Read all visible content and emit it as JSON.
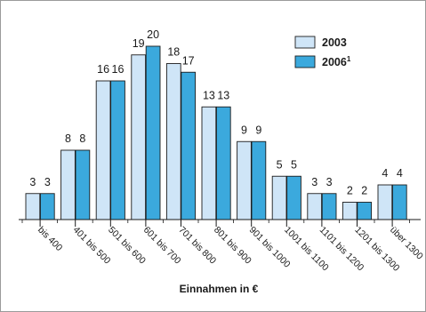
{
  "chart_data": {
    "type": "bar",
    "title": "",
    "xlabel": "Einnahmen in €",
    "ylabel": "",
    "ylim": [
      0,
      20
    ],
    "grid": false,
    "legend_position": "top-right",
    "categories": [
      "bis 400",
      "401 bis 500",
      "501 bis 600",
      "601 bis 700",
      "701 bis 800",
      "801 bis 900",
      "901 bis 1000",
      "1001 bis 1100",
      "1101 bis 1200",
      "1201 bis 1300",
      "über 1300"
    ],
    "series": [
      {
        "name": "2003",
        "color": "#cfe5f7",
        "values": [
          3,
          8,
          16,
          19,
          18,
          13,
          9,
          5,
          3,
          2,
          4
        ]
      },
      {
        "name": "2006",
        "name_superscript": "1",
        "color": "#3ba9dd",
        "values": [
          3,
          8,
          16,
          20,
          17,
          13,
          9,
          5,
          3,
          2,
          4
        ]
      }
    ]
  }
}
